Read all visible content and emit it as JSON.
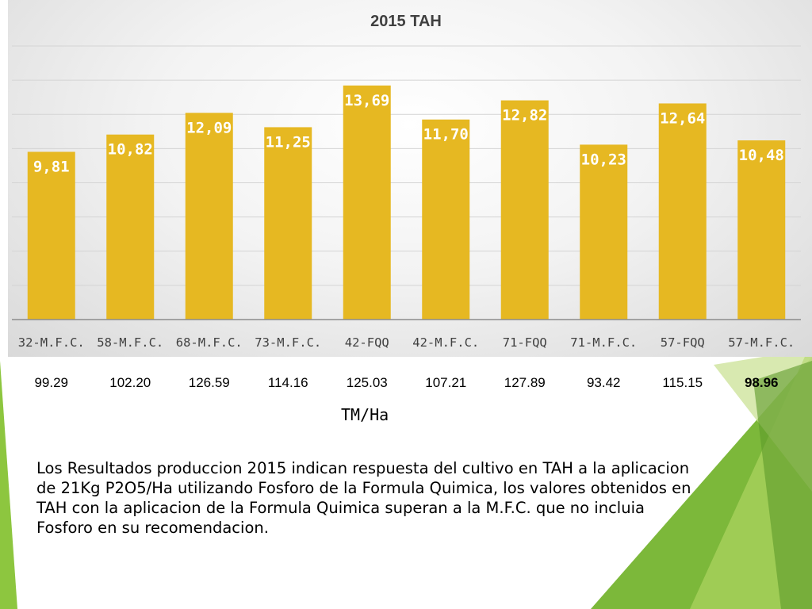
{
  "chart_data": {
    "type": "bar",
    "title": "2015 TAH",
    "categories": [
      "32-M.F.C.",
      "58-M.F.C.",
      "68-M.F.C.",
      "73-M.F.C.",
      "42-FQQ",
      "42-M.F.C.",
      "71-FQQ",
      "71-M.F.C.",
      "57-FQQ",
      "57-M.F.C."
    ],
    "values": [
      9.81,
      10.82,
      12.09,
      11.25,
      13.69,
      11.7,
      12.82,
      10.23,
      12.64,
      10.48
    ],
    "data_labels": [
      "9,81",
      "10,82",
      "12,09",
      "11,25",
      "13,69",
      "11,70",
      "12,82",
      "10,23",
      "12,64",
      "10,48"
    ],
    "ylim": [
      0,
      16
    ],
    "gridlines": true,
    "bar_color": "#e6b822",
    "legend": "none"
  },
  "tm_ha": {
    "values": [
      "99.29",
      "102.20",
      "126.59",
      "114.16",
      "125.03",
      "107.21",
      "127.89",
      "93.42",
      "115.15",
      "98.96"
    ],
    "bold_index": 9,
    "unit": "TM/Ha"
  },
  "description": "Los Resultados produccion 2015 indican respuesta del cultivo en TAH a la aplicacion de 21Kg P2O5/Ha utilizando Fosforo de la Formula Quimica, los valores obtenidos en TAH con la aplicacion de la Formula Quimica superan a la M.F.C. que no incluia Fosforo en su recomendacion.",
  "colors": {
    "accent_green": "#8dc63f",
    "light_green": "#b5d96b",
    "dark_green": "#5e9a2a"
  }
}
